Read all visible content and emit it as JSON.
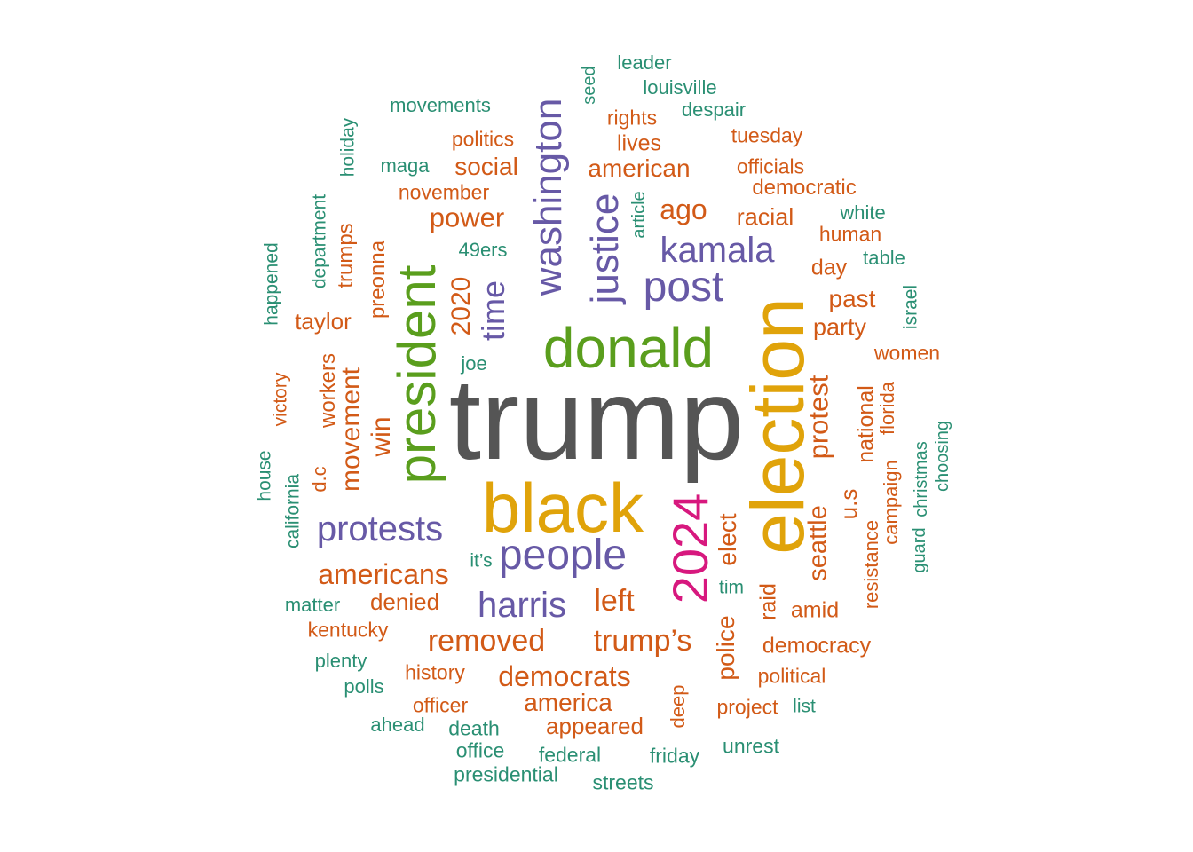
{
  "colors": {
    "top": "#555555",
    "gold": "#e0a30a",
    "green": "#5a9e1d",
    "purple": "#6759a6",
    "magenta": "#d7187e",
    "orange": "#d25a17",
    "teal": "#2a8f73"
  },
  "words": [
    {
      "text": "trump",
      "weight": 100,
      "color": "top"
    },
    {
      "text": "election",
      "weight": 70,
      "color": "gold"
    },
    {
      "text": "black",
      "weight": 62,
      "color": "gold"
    },
    {
      "text": "donald",
      "weight": 52,
      "color": "green"
    },
    {
      "text": "president",
      "weight": 50,
      "color": "green"
    },
    {
      "text": "2024",
      "weight": 45,
      "color": "magenta"
    },
    {
      "text": "washington",
      "weight": 32,
      "color": "purple"
    },
    {
      "text": "people",
      "weight": 36,
      "color": "purple"
    },
    {
      "text": "justice",
      "weight": 32,
      "color": "purple"
    },
    {
      "text": "post",
      "weight": 36,
      "color": "purple"
    },
    {
      "text": "kamala",
      "weight": 32,
      "color": "purple"
    },
    {
      "text": "protests",
      "weight": 32,
      "color": "purple"
    },
    {
      "text": "harris",
      "weight": 32,
      "color": "purple"
    },
    {
      "text": "time",
      "weight": 28,
      "color": "purple"
    },
    {
      "text": "trump’s",
      "weight": 27,
      "color": "orange"
    },
    {
      "text": "removed",
      "weight": 27,
      "color": "orange"
    },
    {
      "text": "left",
      "weight": 27,
      "color": "orange"
    },
    {
      "text": "americans",
      "weight": 25,
      "color": "orange"
    },
    {
      "text": "democrats",
      "weight": 25,
      "color": "orange"
    },
    {
      "text": "protest",
      "weight": 24,
      "color": "orange"
    },
    {
      "text": "movement",
      "weight": 23,
      "color": "orange"
    },
    {
      "text": "2020",
      "weight": 24,
      "color": "orange"
    },
    {
      "text": "win",
      "weight": 24,
      "color": "orange"
    },
    {
      "text": "ago",
      "weight": 26,
      "color": "orange"
    },
    {
      "text": "power",
      "weight": 24,
      "color": "orange"
    },
    {
      "text": "seattle",
      "weight": 23,
      "color": "orange"
    },
    {
      "text": "elect",
      "weight": 23,
      "color": "orange"
    },
    {
      "text": "police",
      "weight": 23,
      "color": "orange"
    },
    {
      "text": "america",
      "weight": 22,
      "color": "orange"
    },
    {
      "text": "american",
      "weight": 22,
      "color": "orange"
    },
    {
      "text": "social",
      "weight": 22,
      "color": "orange"
    },
    {
      "text": "past",
      "weight": 22,
      "color": "orange"
    },
    {
      "text": "racial",
      "weight": 21,
      "color": "orange"
    },
    {
      "text": "party",
      "weight": 21,
      "color": "orange"
    },
    {
      "text": "u.s",
      "weight": 21,
      "color": "orange"
    },
    {
      "text": "national",
      "weight": 20,
      "color": "orange"
    },
    {
      "text": "raid",
      "weight": 20,
      "color": "orange"
    },
    {
      "text": "democracy",
      "weight": 20,
      "color": "orange"
    },
    {
      "text": "appeared",
      "weight": 20,
      "color": "orange"
    },
    {
      "text": "denied",
      "weight": 20,
      "color": "orange"
    },
    {
      "text": "taylor",
      "weight": 20,
      "color": "orange"
    },
    {
      "text": "preonna",
      "weight": 19,
      "color": "orange"
    },
    {
      "text": "trumps",
      "weight": 19,
      "color": "orange"
    },
    {
      "text": "workers",
      "weight": 19,
      "color": "orange"
    },
    {
      "text": "amid",
      "weight": 19,
      "color": "orange"
    },
    {
      "text": "day",
      "weight": 19,
      "color": "orange"
    },
    {
      "text": "lives",
      "weight": 19,
      "color": "orange"
    },
    {
      "text": "democratic",
      "weight": 18,
      "color": "orange"
    },
    {
      "text": "politics",
      "weight": 17,
      "color": "orange"
    },
    {
      "text": "officials",
      "weight": 17,
      "color": "orange"
    },
    {
      "text": "rights",
      "weight": 17,
      "color": "orange"
    },
    {
      "text": "human",
      "weight": 17,
      "color": "orange"
    },
    {
      "text": "women",
      "weight": 17,
      "color": "orange"
    },
    {
      "text": "florida",
      "weight": 17,
      "color": "orange"
    },
    {
      "text": "resistance",
      "weight": 16,
      "color": "orange"
    },
    {
      "text": "campaign",
      "weight": 17,
      "color": "orange"
    },
    {
      "text": "history",
      "weight": 17,
      "color": "orange"
    },
    {
      "text": "officer",
      "weight": 17,
      "color": "orange"
    },
    {
      "text": "political",
      "weight": 17,
      "color": "orange"
    },
    {
      "text": "project",
      "weight": 17,
      "color": "orange"
    },
    {
      "text": "deep",
      "weight": 17,
      "color": "orange"
    },
    {
      "text": "kentucky",
      "weight": 17,
      "color": "orange"
    },
    {
      "text": "november",
      "weight": 17,
      "color": "orange"
    },
    {
      "text": "tuesday",
      "weight": 17,
      "color": "orange"
    },
    {
      "text": "d.c",
      "weight": 17,
      "color": "orange"
    },
    {
      "text": "victory",
      "weight": 16,
      "color": "orange"
    },
    {
      "text": "department",
      "weight": 15,
      "color": "teal"
    },
    {
      "text": "happened",
      "weight": 15,
      "color": "teal"
    },
    {
      "text": "holiday",
      "weight": 15,
      "color": "teal"
    },
    {
      "text": "house",
      "weight": 15,
      "color": "teal"
    },
    {
      "text": "california",
      "weight": 15,
      "color": "teal"
    },
    {
      "text": "movements",
      "weight": 15,
      "color": "teal"
    },
    {
      "text": "maga",
      "weight": 15,
      "color": "teal"
    },
    {
      "text": "49ers",
      "weight": 15,
      "color": "teal"
    },
    {
      "text": "joe",
      "weight": 15,
      "color": "teal"
    },
    {
      "text": "it’s",
      "weight": 15,
      "color": "teal"
    },
    {
      "text": "matter",
      "weight": 15,
      "color": "teal"
    },
    {
      "text": "plenty",
      "weight": 15,
      "color": "teal"
    },
    {
      "text": "polls",
      "weight": 15,
      "color": "teal"
    },
    {
      "text": "ahead",
      "weight": 15,
      "color": "teal"
    },
    {
      "text": "death",
      "weight": 15,
      "color": "teal"
    },
    {
      "text": "office",
      "weight": 15,
      "color": "teal"
    },
    {
      "text": "presidential",
      "weight": 15,
      "color": "teal"
    },
    {
      "text": "federal",
      "weight": 15,
      "color": "teal"
    },
    {
      "text": "streets",
      "weight": 15,
      "color": "teal"
    },
    {
      "text": "friday",
      "weight": 15,
      "color": "teal"
    },
    {
      "text": "unrest",
      "weight": 15,
      "color": "teal"
    },
    {
      "text": "list",
      "weight": 15,
      "color": "teal"
    },
    {
      "text": "tim",
      "weight": 15,
      "color": "teal"
    },
    {
      "text": "seed",
      "weight": 15,
      "color": "teal"
    },
    {
      "text": "leader",
      "weight": 15,
      "color": "teal"
    },
    {
      "text": "louisville",
      "weight": 15,
      "color": "teal"
    },
    {
      "text": "despair",
      "weight": 15,
      "color": "teal"
    },
    {
      "text": "article",
      "weight": 15,
      "color": "teal"
    },
    {
      "text": "white",
      "weight": 15,
      "color": "teal"
    },
    {
      "text": "table",
      "weight": 15,
      "color": "teal"
    },
    {
      "text": "israel",
      "weight": 15,
      "color": "teal"
    },
    {
      "text": "christmas",
      "weight": 15,
      "color": "teal"
    },
    {
      "text": "choosing",
      "weight": 15,
      "color": "teal"
    },
    {
      "text": "guard",
      "weight": 15,
      "color": "teal"
    }
  ]
}
